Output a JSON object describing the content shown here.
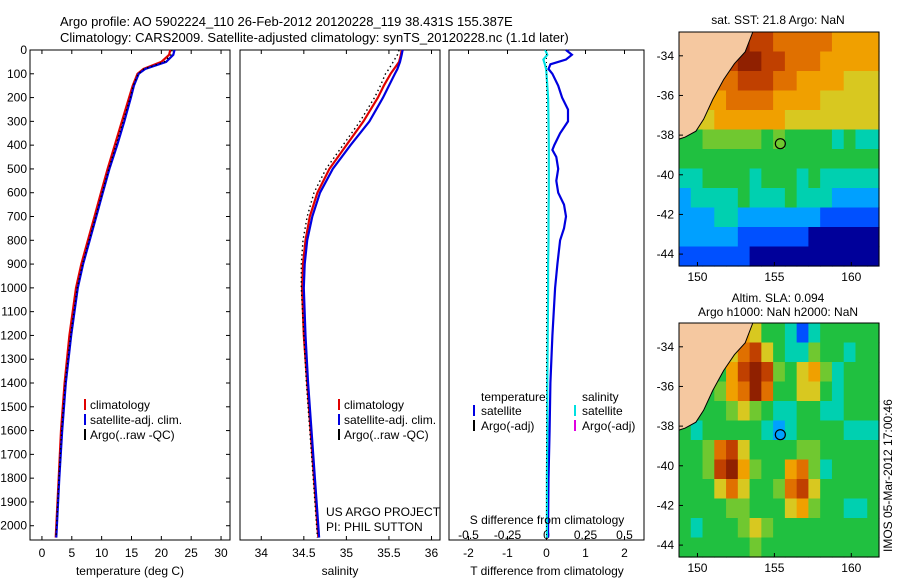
{
  "header": {
    "line1": "Argo profile: AO 5902224_110 26-Feb-2012 20120228_119 38.431S 155.387E",
    "line2": "Climatology: CARS2009. Satellite-adjusted climatology: synTS_20120228.nc (1.1d later)"
  },
  "credit": {
    "line1": "US ARGO PROJECT",
    "line2": "PI: PHIL SUTTON"
  },
  "stamp": "IMOS 05-Mar-2012 17:00:46",
  "colors": {
    "climatology": "#e00000",
    "satellite": "#0000e0",
    "argo": "#000000",
    "satellite_salinity": "#00e0e0",
    "argo_salinity": "#e000e0",
    "land": "#f5c8a0"
  },
  "chart_data": [
    {
      "type": "line",
      "xlabel": "temperature (deg C)",
      "xlim": [
        -2,
        31.5
      ],
      "ylim": [
        0,
        2060
      ],
      "xticks": [
        "0",
        "5",
        "10",
        "15",
        "20",
        "25",
        "30"
      ],
      "xtick_values": [
        0,
        5,
        10,
        15,
        20,
        25,
        30
      ],
      "yticks": [
        "0",
        "100",
        "200",
        "300",
        "400",
        "500",
        "600",
        "700",
        "800",
        "900",
        "1000",
        "1100",
        "1200",
        "1300",
        "1400",
        "1500",
        "1600",
        "1700",
        "1800",
        "1900",
        "2000"
      ],
      "ytick_values": [
        0,
        100,
        200,
        300,
        400,
        500,
        600,
        700,
        800,
        900,
        1000,
        1100,
        1200,
        1300,
        1400,
        1500,
        1600,
        1700,
        1800,
        1900,
        2000
      ],
      "legend": [
        "climatology",
        "satellite-adj. clim.",
        "Argo(..raw -QC)"
      ],
      "legend_position": "lower-center",
      "series": [
        {
          "name": "climatology",
          "color": "#e00000",
          "depth": [
            0,
            20,
            50,
            80,
            100,
            150,
            200,
            300,
            400,
            500,
            600,
            700,
            800,
            900,
            1000,
            1200,
            1400,
            1600,
            1800,
            2000,
            2050
          ],
          "values": [
            21.5,
            21.3,
            20.0,
            17.0,
            16.0,
            15.2,
            14.6,
            13.4,
            12.2,
            11.0,
            9.9,
            8.8,
            7.7,
            6.6,
            5.7,
            4.6,
            3.8,
            3.2,
            2.8,
            2.4,
            2.3
          ]
        },
        {
          "name": "satellite-adj. clim.",
          "color": "#0000e0",
          "depth": [
            0,
            20,
            50,
            80,
            100,
            150,
            200,
            300,
            400,
            500,
            600,
            700,
            800,
            900,
            1000,
            1200,
            1400,
            1600,
            1800,
            2000,
            2050
          ],
          "values": [
            22.2,
            22.0,
            20.8,
            17.3,
            16.2,
            15.4,
            14.9,
            13.8,
            12.6,
            11.3,
            10.2,
            9.1,
            8.0,
            6.9,
            6.0,
            4.9,
            4.0,
            3.4,
            2.9,
            2.5,
            2.4
          ]
        },
        {
          "name": "Argo(..raw -QC)",
          "color": "#000000",
          "depth": [
            0,
            20,
            50,
            80,
            100,
            150,
            200,
            300,
            400,
            500,
            600,
            700,
            800,
            900,
            1000,
            1200,
            1400,
            1600,
            1800,
            2000,
            2050
          ],
          "values": [
            21.8,
            21.6,
            20.5,
            17.1,
            16.1,
            15.3,
            14.8,
            13.6,
            12.4,
            11.2,
            10.1,
            9.0,
            7.9,
            6.8,
            5.9,
            4.8,
            3.9,
            3.3,
            2.85,
            2.45,
            2.35
          ]
        }
      ]
    },
    {
      "type": "line",
      "xlabel": "salinity",
      "xlim": [
        33.75,
        36.1
      ],
      "ylim": [
        0,
        2060
      ],
      "xticks": [
        "34",
        "34.5",
        "35",
        "35.5",
        "36"
      ],
      "xtick_values": [
        34,
        34.5,
        35,
        35.5,
        36
      ],
      "legend": [
        "climatology",
        "satellite-adj. clim.",
        "Argo(..raw -QC)"
      ],
      "legend_position": "lower-center",
      "series": [
        {
          "name": "climatology",
          "color": "#e00000",
          "depth": [
            0,
            20,
            50,
            80,
            100,
            150,
            200,
            300,
            400,
            500,
            600,
            700,
            800,
            900,
            1000,
            1200,
            1400,
            1600,
            1800,
            2000,
            2050
          ],
          "values": [
            35.65,
            35.64,
            35.62,
            35.56,
            35.52,
            35.44,
            35.37,
            35.2,
            35.0,
            34.8,
            34.66,
            34.57,
            34.52,
            34.49,
            34.48,
            34.5,
            34.54,
            34.58,
            34.62,
            34.66,
            34.67
          ]
        },
        {
          "name": "satellite-adj. clim.",
          "color": "#0000e0",
          "depth": [
            0,
            20,
            50,
            80,
            100,
            150,
            200,
            300,
            400,
            500,
            600,
            700,
            800,
            900,
            1000,
            1200,
            1400,
            1600,
            1800,
            2000,
            2050
          ],
          "values": [
            35.66,
            35.65,
            35.63,
            35.6,
            35.57,
            35.5,
            35.43,
            35.27,
            35.05,
            34.84,
            34.69,
            34.6,
            34.54,
            34.51,
            34.5,
            34.52,
            34.55,
            34.59,
            34.63,
            34.67,
            34.68
          ]
        },
        {
          "name": "Argo(..raw -QC)",
          "color": "#000000",
          "depth": [
            0,
            20,
            50,
            80,
            100,
            150,
            200,
            300,
            400,
            500,
            600,
            700,
            800,
            900,
            1000,
            1200,
            1400,
            1600,
            1800,
            2000,
            2050
          ],
          "values": [
            35.62,
            35.6,
            35.55,
            35.5,
            35.46,
            35.4,
            35.33,
            35.16,
            34.96,
            34.76,
            34.62,
            34.54,
            34.49,
            34.47,
            34.47,
            34.5,
            34.53,
            34.57,
            34.61,
            34.65,
            34.66
          ]
        }
      ]
    },
    {
      "type": "line",
      "xlabel": "T difference from climatology",
      "xlabel_top": "S difference from climatology",
      "xlim": [
        -2.5,
        2.5
      ],
      "ylim": [
        0,
        2060
      ],
      "xticks": [
        "-2",
        "-1",
        "0",
        "1",
        "2"
      ],
      "xtick_values": [
        -2,
        -1,
        0,
        1,
        2
      ],
      "xticks_top": [
        "-0.5",
        "-0.25",
        "0",
        "0.25",
        "0.5"
      ],
      "xtick_top_values": [
        -0.5,
        -0.25,
        0,
        0.25,
        0.5
      ],
      "legend_temperature_title": "temperature",
      "legend_salinity_title": "salinity",
      "legend_temperature": [
        "satellite",
        "Argo(-adj)"
      ],
      "legend_salinity": [
        "satellite",
        "Argo(-adj)"
      ],
      "series": [
        {
          "name": "temperature satellite",
          "color": "#0000e0",
          "depth": [
            0,
            20,
            40,
            60,
            80,
            100,
            150,
            200,
            250,
            300,
            350,
            400,
            420,
            450,
            500,
            550,
            600,
            650,
            700,
            750,
            800,
            900,
            1000,
            1200,
            1400,
            1600,
            1800,
            2000,
            2050
          ],
          "values": [
            0.5,
            0.65,
            0.5,
            0.1,
            0.05,
            0.15,
            0.3,
            0.4,
            0.55,
            0.55,
            0.35,
            0.2,
            0.15,
            0.25,
            0.3,
            0.25,
            0.3,
            0.45,
            0.5,
            0.45,
            0.35,
            0.28,
            0.22,
            0.15,
            0.1,
            0.08,
            0.05,
            0.04,
            0.04
          ]
        },
        {
          "name": "salinity satellite",
          "color": "#00e0e0",
          "depth": [
            0,
            20,
            40,
            60,
            80,
            100,
            150,
            200,
            300,
            400,
            500,
            600,
            700,
            800,
            900,
            1000,
            1200,
            1400,
            1600,
            1800,
            2000,
            2050
          ],
          "values": [
            -0.03,
            0.02,
            -0.08,
            -0.04,
            -0.01,
            0.0,
            0.02,
            0.04,
            0.05,
            0.06,
            0.06,
            0.06,
            0.05,
            0.05,
            0.04,
            0.04,
            0.03,
            0.02,
            0.02,
            0.01,
            0.01,
            0.01
          ]
        }
      ]
    }
  ],
  "maps": [
    {
      "title": "sat. SST: 21.8 Argo: NaN",
      "type": "heatmap",
      "yticks": [
        "-34",
        "-36",
        "-38",
        "-40",
        "-42",
        "-44"
      ],
      "ytick_values": [
        -34,
        -36,
        -38,
        -40,
        -42,
        -44
      ],
      "xticks": [
        "150",
        "155",
        "160"
      ],
      "xtick_values": [
        150,
        155,
        160
      ],
      "xlim": [
        148.8,
        161.8
      ],
      "ylim": [
        -44.6,
        -32.8
      ],
      "marker": {
        "lon": 155.387,
        "lat": -38.431
      },
      "palette": [
        "#00009a",
        "#0050ff",
        "#00a0ff",
        "#00d0b0",
        "#20c040",
        "#70c830",
        "#d8c820",
        "#f0a000",
        "#e07000",
        "#c04000",
        "#902000"
      ],
      "grid": [
        [
          7,
          8,
          9,
          9,
          10,
          10,
          9,
          9,
          8,
          8,
          8,
          8,
          8,
          7,
          7,
          7,
          7
        ],
        [
          7,
          7,
          8,
          9,
          9,
          10,
          10,
          9,
          9,
          8,
          8,
          8,
          7,
          7,
          7,
          7,
          7
        ],
        [
          6,
          7,
          7,
          8,
          8,
          9,
          9,
          9,
          8,
          8,
          7,
          7,
          7,
          7,
          6,
          6,
          6
        ],
        [
          6,
          6,
          7,
          7,
          8,
          8,
          8,
          8,
          7,
          7,
          7,
          7,
          6,
          6,
          6,
          6,
          6
        ],
        [
          5,
          6,
          6,
          7,
          7,
          7,
          7,
          7,
          7,
          6,
          6,
          6,
          6,
          6,
          6,
          6,
          6
        ],
        [
          4,
          4,
          5,
          5,
          5,
          5,
          5,
          4,
          5,
          4,
          4,
          4,
          4,
          3,
          4,
          3,
          3
        ],
        [
          4,
          4,
          4,
          4,
          4,
          4,
          4,
          4,
          4,
          4,
          4,
          4,
          4,
          4,
          4,
          4,
          4
        ],
        [
          3,
          3,
          4,
          4,
          4,
          4,
          3,
          4,
          4,
          4,
          3,
          4,
          3,
          3,
          3,
          3,
          3
        ],
        [
          2,
          3,
          3,
          3,
          3,
          4,
          3,
          3,
          3,
          4,
          3,
          3,
          3,
          2,
          2,
          2,
          2
        ],
        [
          2,
          2,
          2,
          3,
          3,
          2,
          2,
          2,
          2,
          2,
          2,
          2,
          1,
          1,
          1,
          1,
          1
        ],
        [
          2,
          2,
          2,
          2,
          2,
          1,
          1,
          1,
          1,
          1,
          1,
          0,
          0,
          0,
          0,
          0,
          0
        ],
        [
          1,
          1,
          1,
          1,
          1,
          1,
          0,
          0,
          0,
          0,
          0,
          0,
          0,
          0,
          0,
          0,
          0
        ]
      ]
    },
    {
      "title_line1": "Altim. SLA: 0.094",
      "title_line2": "Argo h1000: NaN h2000: NaN",
      "type": "heatmap",
      "yticks": [
        "-34",
        "-36",
        "-38",
        "-40",
        "-42",
        "-44"
      ],
      "ytick_values": [
        -34,
        -36,
        -38,
        -40,
        -42,
        -44
      ],
      "xticks": [
        "150",
        "155",
        "160"
      ],
      "xtick_values": [
        150,
        155,
        160
      ],
      "xlim": [
        148.8,
        161.8
      ],
      "ylim": [
        -44.6,
        -32.8
      ],
      "marker": {
        "lon": 155.387,
        "lat": -38.431
      },
      "palette": [
        "#00009a",
        "#0050ff",
        "#00a0ff",
        "#00d0b0",
        "#20c040",
        "#70c830",
        "#d8c820",
        "#f0a000",
        "#e07000",
        "#c04000",
        "#902000"
      ],
      "grid": [
        [
          4,
          4,
          4,
          3,
          5,
          7,
          6,
          4,
          4,
          3,
          1,
          3,
          4,
          4,
          4,
          4,
          4
        ],
        [
          4,
          4,
          3,
          4,
          6,
          8,
          9,
          6,
          4,
          3,
          3,
          5,
          4,
          4,
          3,
          4,
          4
        ],
        [
          4,
          4,
          4,
          4,
          7,
          9,
          10,
          9,
          5,
          4,
          6,
          7,
          5,
          3,
          4,
          4,
          4
        ],
        [
          4,
          4,
          4,
          5,
          7,
          8,
          10,
          8,
          4,
          4,
          6,
          6,
          4,
          3,
          4,
          4,
          4
        ],
        [
          4,
          4,
          4,
          4,
          5,
          6,
          5,
          4,
          3,
          3,
          4,
          4,
          3,
          3,
          4,
          4,
          4
        ],
        [
          4,
          3,
          4,
          4,
          4,
          4,
          4,
          3,
          2,
          3,
          4,
          4,
          4,
          4,
          3,
          3,
          3
        ],
        [
          4,
          4,
          5,
          8,
          9,
          6,
          4,
          4,
          4,
          4,
          5,
          5,
          4,
          4,
          4,
          4,
          4
        ],
        [
          4,
          4,
          5,
          9,
          10,
          7,
          5,
          4,
          4,
          7,
          8,
          5,
          3,
          4,
          4,
          4,
          4
        ],
        [
          4,
          4,
          4,
          6,
          8,
          6,
          4,
          4,
          5,
          8,
          9,
          6,
          4,
          4,
          4,
          4,
          4
        ],
        [
          4,
          4,
          4,
          4,
          5,
          5,
          4,
          4,
          4,
          6,
          7,
          5,
          4,
          4,
          3,
          3,
          4
        ],
        [
          4,
          3,
          4,
          4,
          4,
          5,
          6,
          5,
          4,
          4,
          4,
          4,
          4,
          4,
          4,
          4,
          4
        ],
        [
          4,
          4,
          4,
          4,
          4,
          4,
          5,
          4,
          4,
          4,
          4,
          4,
          4,
          4,
          4,
          4,
          4
        ]
      ]
    }
  ]
}
